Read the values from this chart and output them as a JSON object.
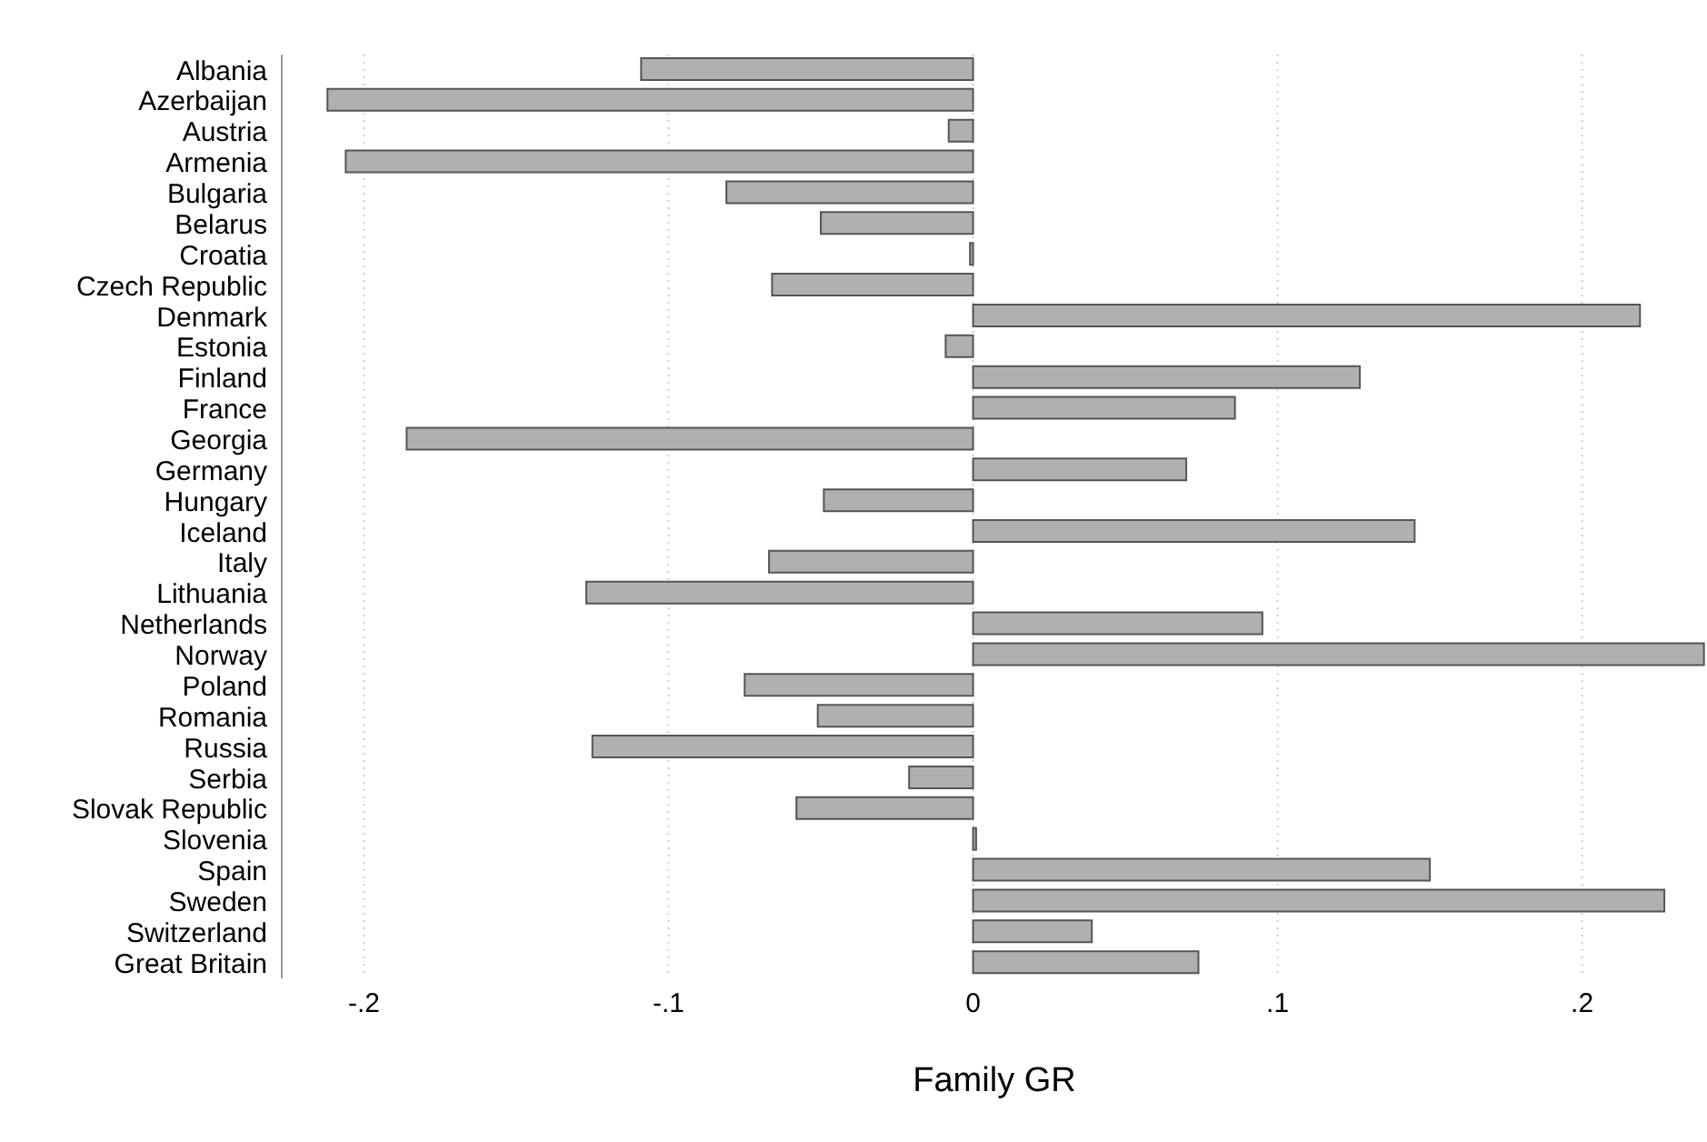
{
  "chart_data": {
    "type": "bar",
    "orientation": "horizontal",
    "xlabel": "Family GR",
    "categories": [
      "Albania",
      "Azerbaijan",
      "Austria",
      "Armenia",
      "Bulgaria",
      "Belarus",
      "Croatia",
      "Czech Republic",
      "Denmark",
      "Estonia",
      "Finland",
      "France",
      "Georgia",
      "Germany",
      "Hungary",
      "Iceland",
      "Italy",
      "Lithuania",
      "Netherlands",
      "Norway",
      "Poland",
      "Romania",
      "Russia",
      "Serbia",
      "Slovak Republic",
      "Slovenia",
      "Spain",
      "Sweden",
      "Switzerland",
      "Great Britain"
    ],
    "values": [
      -0.109,
      -0.212,
      -0.008,
      -0.206,
      -0.081,
      -0.05,
      -0.001,
      -0.066,
      0.219,
      -0.009,
      0.127,
      0.086,
      -0.186,
      0.07,
      -0.049,
      0.145,
      -0.067,
      -0.127,
      0.095,
      0.24,
      -0.075,
      -0.051,
      -0.125,
      -0.021,
      -0.058,
      0.001,
      0.15,
      0.227,
      0.039,
      0.074
    ],
    "color": "#b0b0b0",
    "xlim": [
      -0.227,
      0.241
    ],
    "xticks": [
      {
        "value": -0.2,
        "label": "-.2"
      },
      {
        "value": -0.1,
        "label": "-.1"
      },
      0,
      {
        "value": 0.1,
        "label": ".1"
      },
      {
        "value": 0.2,
        "label": ".2"
      }
    ],
    "grid": "x"
  }
}
